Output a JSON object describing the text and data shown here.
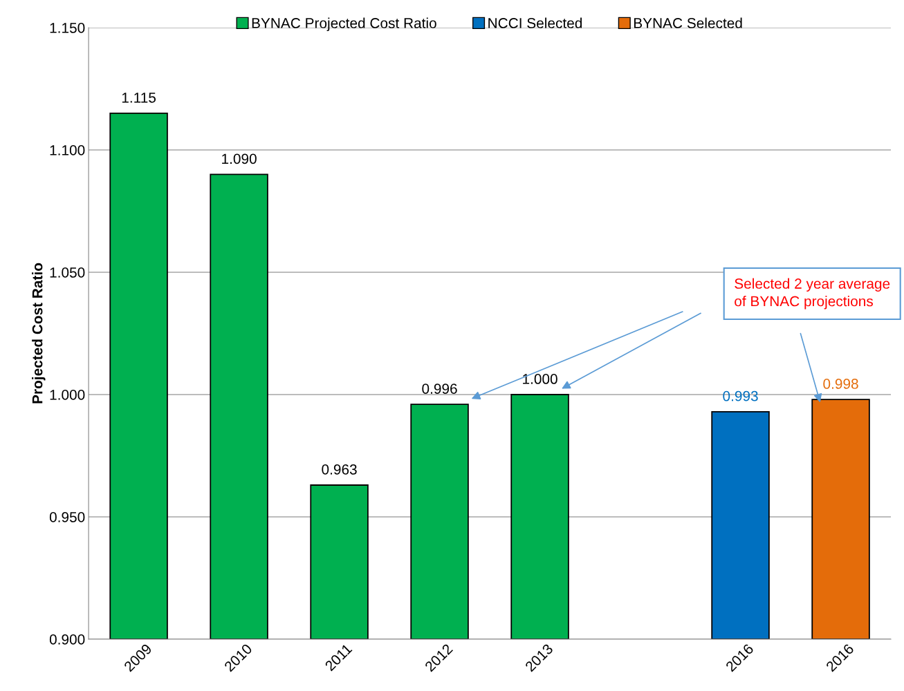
{
  "chart_data": {
    "type": "bar",
    "ylabel": "Projected Cost Ratio",
    "categories": [
      "2009",
      "2010",
      "2011",
      "2012",
      "2013",
      null,
      "2016",
      "2016"
    ],
    "series": [
      {
        "name": "BYNAC Projected Cost Ratio",
        "color": "#00b050",
        "values": [
          1.115,
          1.09,
          0.963,
          0.996,
          1.0,
          null,
          null,
          null
        ],
        "value_labels": [
          "1.115",
          "1.090",
          "0.963",
          "0.996",
          "1.000",
          null,
          null,
          null
        ]
      },
      {
        "name": "NCCI Selected",
        "color": "#0070c0",
        "values": [
          null,
          null,
          null,
          null,
          null,
          null,
          0.993,
          null
        ],
        "value_labels": [
          null,
          null,
          null,
          null,
          null,
          null,
          "0.993",
          null
        ]
      },
      {
        "name": "BYNAC Selected",
        "color": "#e46c0a",
        "values": [
          null,
          null,
          null,
          null,
          null,
          null,
          null,
          0.998
        ],
        "value_labels": [
          null,
          null,
          null,
          null,
          null,
          null,
          null,
          "0.998"
        ]
      }
    ],
    "ylim": [
      0.9,
      1.15
    ],
    "yticks": [
      {
        "value": 0.9,
        "label": "0.900"
      },
      {
        "value": 0.95,
        "label": "0.950"
      },
      {
        "value": 1.0,
        "label": "1.000"
      },
      {
        "value": 1.05,
        "label": "1.050"
      },
      {
        "value": 1.1,
        "label": "1.100"
      },
      {
        "value": 1.15,
        "label": "1.150"
      }
    ],
    "grid": "y",
    "legend": "top",
    "annotations": [
      "Selected 2 year average of BYNAC projections"
    ]
  }
}
